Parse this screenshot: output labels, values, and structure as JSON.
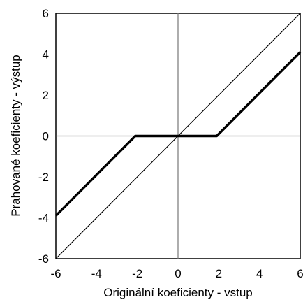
{
  "chart_data": {
    "type": "line",
    "xlabel": "Originální koeficienty - vstup",
    "ylabel": "Prahované koeficienty - výstup",
    "xlim": [
      -6,
      6
    ],
    "ylim": [
      -6,
      6
    ],
    "xticks": [
      "-6",
      "-4",
      "-2",
      "0",
      "2",
      "4",
      "6"
    ],
    "yticks": [
      "6",
      "4",
      "2",
      "0",
      "-2",
      "-4",
      "-6"
    ],
    "xtick_values": [
      -6,
      -4,
      -2,
      0,
      2,
      4,
      6
    ],
    "ytick_values": [
      6,
      4,
      2,
      0,
      -2,
      -4,
      -6
    ],
    "grid": false,
    "zero_lines": true,
    "series": [
      {
        "style": "thin",
        "color": "#000000",
        "x": [
          -6,
          6
        ],
        "y": [
          -6,
          6
        ]
      },
      {
        "style": "thick",
        "color": "#000000",
        "x": [
          -6,
          -2.1,
          1.9,
          6
        ],
        "y": [
          -3.9,
          0,
          0,
          4.1
        ]
      }
    ]
  }
}
